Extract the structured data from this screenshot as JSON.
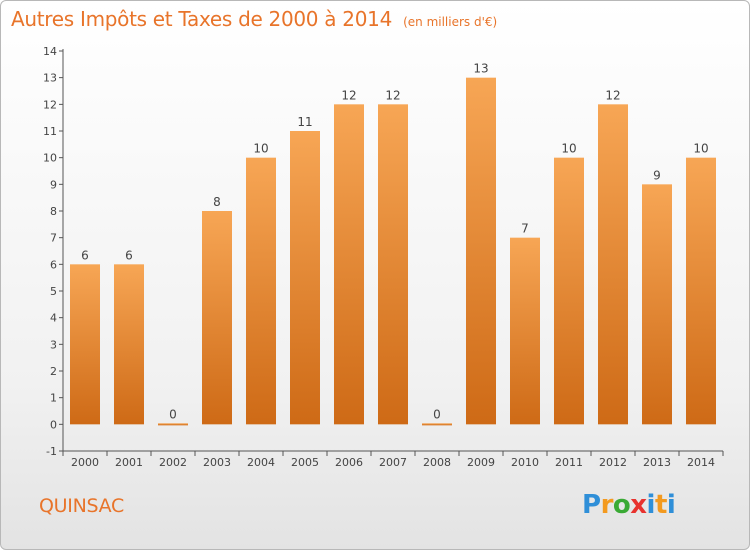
{
  "header": {
    "title": "Autres Impôts et Taxes de 2000 à 2014",
    "unit_note": "(en milliers d'€)"
  },
  "commune": "QUINSAC",
  "logo": {
    "text": "Proxiti",
    "letters": [
      "P",
      "r",
      "o",
      "x",
      "i",
      "t",
      "i"
    ]
  },
  "colors": {
    "accent": "#e8742a",
    "bar_light": "#f7a655",
    "bar_dark": "#ce6a16",
    "axis": "#555555"
  },
  "chart_data": {
    "type": "bar",
    "categories": [
      "2000",
      "2001",
      "2002",
      "2003",
      "2004",
      "2005",
      "2006",
      "2007",
      "2008",
      "2009",
      "2010",
      "2011",
      "2012",
      "2013",
      "2014"
    ],
    "values": [
      6,
      6,
      0,
      8,
      10,
      11,
      12,
      12,
      0,
      13,
      7,
      10,
      12,
      9,
      10
    ],
    "data_labels": [
      "6",
      "6",
      "0",
      "8",
      "10",
      "11",
      "12",
      "12",
      "0",
      "13",
      "7",
      "10",
      "12",
      "9",
      "10"
    ],
    "title": "Autres Impôts et Taxes de 2000 à 2014",
    "xlabel": "",
    "ylabel": "",
    "ylim": [
      -1,
      14
    ],
    "y_ticks": [
      -1,
      0,
      1,
      2,
      3,
      4,
      5,
      6,
      7,
      8,
      9,
      10,
      11,
      12,
      13,
      14
    ],
    "y_tick_labels": [
      "-1",
      "0",
      "1",
      "2",
      "3",
      "4",
      "5",
      "6",
      "7",
      "8",
      "9",
      "10",
      "11",
      "12",
      "13",
      "14"
    ],
    "grid": false,
    "legend": "none"
  }
}
